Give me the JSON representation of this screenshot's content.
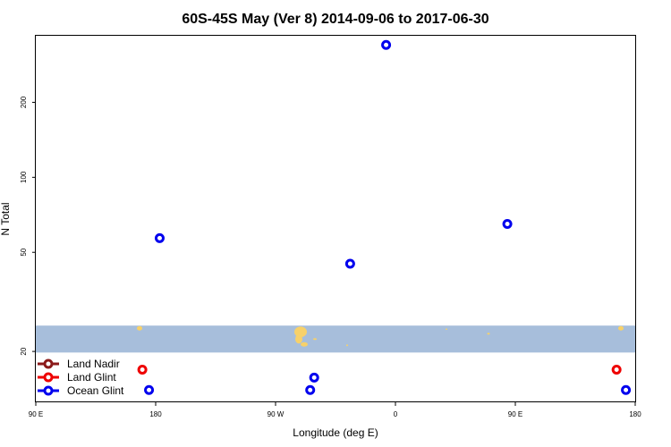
{
  "chart_data": {
    "type": "scatter",
    "title": "60S-45S May (Ver 8)   2014-09-06 to 2017-06-30",
    "xlabel": "Longitude (deg E)",
    "ylabel": "N Total",
    "x_ticks": [
      {
        "value": 90,
        "label": "90 E"
      },
      {
        "value": 180,
        "label": "180"
      },
      {
        "value": 270,
        "label": "90 W"
      },
      {
        "value": 360,
        "label": "0"
      },
      {
        "value": 450,
        "label": "90 E"
      },
      {
        "value": 540,
        "label": "180"
      }
    ],
    "xlim": [
      90,
      540
    ],
    "y_scale": "log",
    "y_ticks": [
      20,
      50,
      100,
      200
    ],
    "ylim": [
      12.5,
      370
    ],
    "legend_position": "bottom-left",
    "legend": [
      {
        "name": "Land Nadir",
        "color": "#8b1a1a"
      },
      {
        "name": "Land Glint",
        "color": "#ee0000"
      },
      {
        "name": "Ocean Glint",
        "color": "#0000ee"
      }
    ],
    "map_band": {
      "y_range": [
        19.8,
        25.4
      ],
      "ocean_color": "#a7bedb",
      "land_color": "#f7d16a"
    },
    "series": [
      {
        "name": "Land Nadir",
        "color": "#8b1a1a",
        "points": []
      },
      {
        "name": "Land Glint",
        "color": "#ee0000",
        "points": [
          {
            "x": 170,
            "y": 16.9
          },
          {
            "x": 526,
            "y": 16.9
          }
        ]
      },
      {
        "name": "Ocean Glint",
        "color": "#0000ee",
        "points": [
          {
            "x": 175,
            "y": 14.0
          },
          {
            "x": 183,
            "y": 57
          },
          {
            "x": 296,
            "y": 14.0
          },
          {
            "x": 299,
            "y": 15.7
          },
          {
            "x": 326,
            "y": 45
          },
          {
            "x": 353,
            "y": 340
          },
          {
            "x": 444,
            "y": 65
          },
          {
            "x": 533,
            "y": 14.0
          }
        ]
      }
    ]
  }
}
